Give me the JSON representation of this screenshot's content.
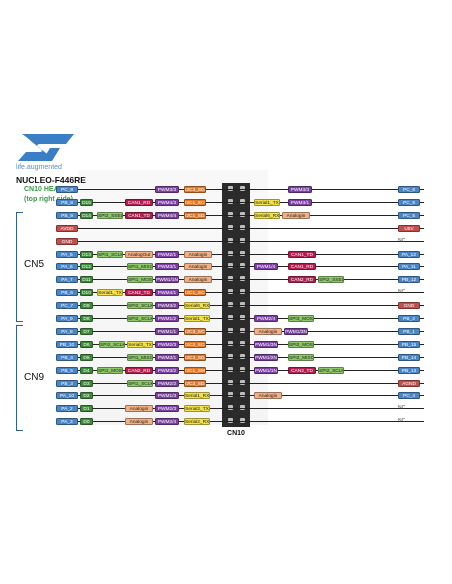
{
  "header": {
    "tagline": "life.augmented",
    "board": "NUCLEO-F446RE",
    "subtitle_1": "CN10 HEADER",
    "subtitle_2": "(top right side)"
  },
  "connectors": {
    "cn5": "CN5",
    "cn9": "CN9",
    "cn10": "CN10"
  },
  "colors": {
    "pin": "#4a86c5",
    "arduino": "#3f8a3a",
    "timer": "#7a3fa0",
    "i2c": "#e07a2a",
    "can": "#b01f4e",
    "analog": "#f2b084",
    "serial": "#f3e14a",
    "spi": "#8cc86a",
    "power": "#c0504d",
    "nc": "#444444"
  },
  "rows": [
    {
      "row": 0,
      "left": [
        {
          "t": "pin",
          "s": "PC_8"
        }
      ],
      "lmid": [
        {
          "t": "timer",
          "s": "PWM3/3"
        }
      ],
      "lhdr": [
        {
          "t": "i2c",
          "s": "I2C3_SDA"
        }
      ],
      "rmid": [
        {
          "t": "timer",
          "s": "PWM3/3"
        }
      ],
      "right": [
        {
          "t": "pin",
          "s": "PC_8"
        }
      ]
    },
    {
      "row": 1,
      "left": [
        {
          "t": "pin",
          "s": "PB_8"
        },
        {
          "t": "arduino",
          "s": "D15"
        }
      ],
      "lmid": [
        {
          "t": "can",
          "s": "CAN1_RD"
        },
        {
          "t": "timer",
          "s": "PWM4/3"
        }
      ],
      "lhdr": [
        {
          "t": "i2c",
          "s": "I2C1_SCL"
        }
      ],
      "rhdr": [
        {
          "t": "serial",
          "s": "Serial1_TX"
        }
      ],
      "rmid": [
        {
          "t": "timer",
          "s": "PWM3/1"
        }
      ],
      "right": [
        {
          "t": "pin",
          "s": "PC_6"
        }
      ]
    },
    {
      "row": 2,
      "left": [
        {
          "t": "pin",
          "s": "PB_9"
        },
        {
          "t": "arduino",
          "s": "D14"
        }
      ],
      "lmid": [
        {
          "t": "spi",
          "s": "SPI2_SSEL"
        },
        {
          "t": "can",
          "s": "CAN1_TD"
        },
        {
          "t": "timer",
          "s": "PWM4/4"
        }
      ],
      "lhdr": [
        {
          "t": "i2c",
          "s": "I2C1_SDA"
        }
      ],
      "rhdr": [
        {
          "t": "serial",
          "s": "Serial6_RX"
        },
        {
          "t": "analog",
          "s": "Analogin"
        }
      ],
      "right": [
        {
          "t": "pin",
          "s": "PC_5"
        }
      ]
    },
    {
      "row": 3,
      "left": [
        {
          "t": "power",
          "s": "AVDD"
        }
      ],
      "right": [
        {
          "t": "power",
          "s": "U5V"
        }
      ]
    },
    {
      "row": 4,
      "left": [
        {
          "t": "power",
          "s": "GND"
        }
      ],
      "right": [
        {
          "t": "nc",
          "s": "NC"
        }
      ]
    },
    {
      "row": 5,
      "left": [
        {
          "t": "pin",
          "s": "PA_5"
        },
        {
          "t": "arduino",
          "s": "D13"
        }
      ],
      "lmid": [
        {
          "t": "spi",
          "s": "SPI1_SCLK"
        },
        {
          "t": "analog",
          "s": "AnalogOut"
        },
        {
          "t": "timer",
          "s": "PWM2/1"
        }
      ],
      "lhdr": [
        {
          "t": "analog",
          "s": "Analogin"
        }
      ],
      "rmid": [
        {
          "t": "can",
          "s": "CAN1_TD"
        }
      ],
      "right": [
        {
          "t": "pin",
          "s": "PA_12"
        }
      ]
    },
    {
      "row": 6,
      "left": [
        {
          "t": "pin",
          "s": "PA_6"
        },
        {
          "t": "arduino",
          "s": "D12"
        }
      ],
      "lmid": [
        {
          "t": "spi",
          "s": "SPI1_MISO"
        },
        {
          "t": "timer",
          "s": "PWM3/1"
        }
      ],
      "lhdr": [
        {
          "t": "analog",
          "s": "Analogin"
        }
      ],
      "rhdr": [
        {
          "t": "timer",
          "s": "PWM1/4"
        }
      ],
      "rmid": [
        {
          "t": "can",
          "s": "CAN1_RD"
        }
      ],
      "right": [
        {
          "t": "pin",
          "s": "PA_11"
        }
      ]
    },
    {
      "row": 7,
      "left": [
        {
          "t": "pin",
          "s": "PA_7"
        },
        {
          "t": "arduino",
          "s": "D11"
        }
      ],
      "lmid": [
        {
          "t": "spi",
          "s": "SPI1_MOSI"
        },
        {
          "t": "timer",
          "s": "PWM1/1N"
        }
      ],
      "lhdr": [
        {
          "t": "analog",
          "s": "Analogin"
        }
      ],
      "rmid": [
        {
          "t": "can",
          "s": "CAN2_RD"
        },
        {
          "t": "spi",
          "s": "SPI2_SSEL"
        }
      ],
      "right": [
        {
          "t": "pin",
          "s": "PB_12"
        }
      ]
    },
    {
      "row": 8,
      "left": [
        {
          "t": "pin",
          "s": "PB_6"
        },
        {
          "t": "arduino",
          "s": "D10"
        }
      ],
      "lmid": [
        {
          "t": "serial",
          "s": "Serial1_TX"
        },
        {
          "t": "can",
          "s": "CAN2_TD"
        },
        {
          "t": "timer",
          "s": "PWM4/1"
        }
      ],
      "lhdr": [
        {
          "t": "i2c",
          "s": "I2C1_SCL"
        }
      ],
      "right": [
        {
          "t": "nc",
          "s": "NC"
        }
      ]
    },
    {
      "row": 9,
      "left": [
        {
          "t": "pin",
          "s": "PC_7"
        },
        {
          "t": "arduino",
          "s": "D9"
        }
      ],
      "lmid": [
        {
          "t": "spi",
          "s": "SPI2_SCLK"
        },
        {
          "t": "timer",
          "s": "PWM3/2"
        }
      ],
      "lhdr": [
        {
          "t": "serial",
          "s": "Serial6_RX"
        }
      ],
      "right": [
        {
          "t": "power",
          "s": "GND"
        }
      ]
    },
    {
      "row": 10,
      "left": [
        {
          "t": "pin",
          "s": "PA_9"
        },
        {
          "t": "arduino",
          "s": "D8"
        }
      ],
      "lmid": [
        {
          "t": "spi",
          "s": "SPI2_SCLK"
        },
        {
          "t": "timer",
          "s": "PWM1/2"
        }
      ],
      "lhdr": [
        {
          "t": "serial",
          "s": "Serial1_TX"
        }
      ],
      "rhdr": [
        {
          "t": "timer",
          "s": "PWM2/4"
        }
      ],
      "rmid": [
        {
          "t": "spi",
          "s": "SPI3_MOSI"
        }
      ],
      "right": [
        {
          "t": "pin",
          "s": "PB_2"
        }
      ]
    },
    {
      "row": 11,
      "left": [
        {
          "t": "pin",
          "s": "PA_8"
        },
        {
          "t": "arduino",
          "s": "D7"
        }
      ],
      "lmid": [
        {
          "t": "timer",
          "s": "PWM1/1"
        }
      ],
      "lhdr": [
        {
          "t": "i2c",
          "s": "I2C3_SCL"
        }
      ],
      "rhdr": [
        {
          "t": "analog",
          "s": "Analogin"
        },
        {
          "t": "timer",
          "s": "PWM1/3N"
        }
      ],
      "right": [
        {
          "t": "pin",
          "s": "PB_1"
        }
      ]
    },
    {
      "row": 12,
      "left": [
        {
          "t": "pin",
          "s": "PB_10"
        },
        {
          "t": "arduino",
          "s": "D6"
        }
      ],
      "lmid": [
        {
          "t": "spi",
          "s": "SPI2_SCLK"
        },
        {
          "t": "serial",
          "s": "Serial3_TX"
        },
        {
          "t": "timer",
          "s": "PWM2/3"
        }
      ],
      "lhdr": [
        {
          "t": "i2c",
          "s": "I2C2_SCL"
        }
      ],
      "rhdr": [
        {
          "t": "timer",
          "s": "PWM1/3N"
        }
      ],
      "rmid": [
        {
          "t": "spi",
          "s": "SPI2_MOSI"
        }
      ],
      "right": [
        {
          "t": "pin",
          "s": "PB_15"
        }
      ]
    },
    {
      "row": 13,
      "left": [
        {
          "t": "pin",
          "s": "PB_4"
        },
        {
          "t": "arduino",
          "s": "D5"
        }
      ],
      "lmid": [
        {
          "t": "spi",
          "s": "SPI1_MISO"
        },
        {
          "t": "timer",
          "s": "PWM3/1"
        }
      ],
      "lhdr": [
        {
          "t": "i2c",
          "s": "I2C3_SDA"
        }
      ],
      "rhdr": [
        {
          "t": "timer",
          "s": "PWM1/2N"
        }
      ],
      "rmid": [
        {
          "t": "spi",
          "s": "SPI2_MISO"
        }
      ],
      "right": [
        {
          "t": "pin",
          "s": "PB_14"
        }
      ]
    },
    {
      "row": 14,
      "left": [
        {
          "t": "pin",
          "s": "PB_5"
        },
        {
          "t": "arduino",
          "s": "D4"
        }
      ],
      "lmid": [
        {
          "t": "spi",
          "s": "SPI1_MOSI"
        },
        {
          "t": "can",
          "s": "CAN2_RD"
        },
        {
          "t": "timer",
          "s": "PWM3/2"
        }
      ],
      "lhdr": [
        {
          "t": "i2c",
          "s": "I2C1_SMBA"
        }
      ],
      "rhdr": [
        {
          "t": "timer",
          "s": "PWM1/1N"
        }
      ],
      "rmid": [
        {
          "t": "can",
          "s": "CAN2_TD"
        },
        {
          "t": "spi",
          "s": "SPI2_SCLK"
        }
      ],
      "right": [
        {
          "t": "pin",
          "s": "PB_13"
        }
      ]
    },
    {
      "row": 15,
      "left": [
        {
          "t": "pin",
          "s": "PB_3"
        },
        {
          "t": "arduino",
          "s": "D3"
        }
      ],
      "lmid": [
        {
          "t": "spi",
          "s": "SPI1_SCLK"
        },
        {
          "t": "timer",
          "s": "PWM2/2"
        }
      ],
      "lhdr": [
        {
          "t": "i2c",
          "s": "I2C2_SDA"
        }
      ],
      "right": [
        {
          "t": "power",
          "s": "AGND"
        }
      ]
    },
    {
      "row": 16,
      "left": [
        {
          "t": "pin",
          "s": "PA_10"
        },
        {
          "t": "arduino",
          "s": "D2"
        }
      ],
      "lmid": [
        {
          "t": "timer",
          "s": "PWM1/3"
        }
      ],
      "lhdr": [
        {
          "t": "serial",
          "s": "Serial1_RX"
        }
      ],
      "rhdr": [
        {
          "t": "analog",
          "s": "Analogin"
        }
      ],
      "right": [
        {
          "t": "pin",
          "s": "PC_4"
        }
      ]
    },
    {
      "row": 17,
      "left": [
        {
          "t": "pin",
          "s": "PA_2"
        },
        {
          "t": "arduino",
          "s": "D1"
        }
      ],
      "lmid": [
        {
          "t": "analog",
          "s": "Analogin"
        },
        {
          "t": "timer",
          "s": "PWM2/3"
        }
      ],
      "lhdr": [
        {
          "t": "serial",
          "s": "Serial2_TX"
        }
      ],
      "right": [
        {
          "t": "nc",
          "s": "NC"
        }
      ]
    },
    {
      "row": 18,
      "left": [
        {
          "t": "pin",
          "s": "PA_3"
        },
        {
          "t": "arduino",
          "s": "D0"
        }
      ],
      "lmid": [
        {
          "t": "analog",
          "s": "Analogin"
        },
        {
          "t": "timer",
          "s": "PWM2/4"
        }
      ],
      "lhdr": [
        {
          "t": "serial",
          "s": "Serial2_RX"
        }
      ],
      "right": [
        {
          "t": "nc",
          "s": "NC"
        }
      ]
    }
  ]
}
